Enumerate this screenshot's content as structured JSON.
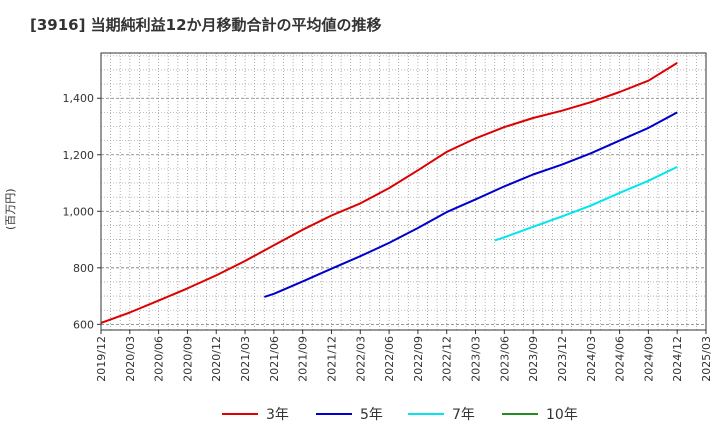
{
  "chart_data": {
    "type": "line",
    "title": "[3916]  当期純利益12か月移動合計の平均値の推移",
    "ylabel": "(百万円)",
    "xlabel": "",
    "ylim": [
      580,
      1560
    ],
    "yticks": [
      600,
      800,
      1000,
      1200,
      1400
    ],
    "ytick_labels": [
      "600",
      "800",
      "1,000",
      "1,200",
      "1,400"
    ],
    "xticks": [
      "2019/12",
      "2020/03",
      "2020/06",
      "2020/09",
      "2020/12",
      "2021/03",
      "2021/06",
      "2021/09",
      "2021/12",
      "2022/03",
      "2022/06",
      "2022/09",
      "2022/12",
      "2023/03",
      "2023/06",
      "2023/09",
      "2023/12",
      "2024/03",
      "2024/06",
      "2024/09",
      "2024/12",
      "2025/03"
    ],
    "grid": true,
    "legend_position": "bottom",
    "series": [
      {
        "name": "3年",
        "color": "#dd0000",
        "x": [
          "2019/12",
          "2020/03",
          "2020/06",
          "2020/09",
          "2020/12",
          "2021/03",
          "2021/06",
          "2021/09",
          "2021/12",
          "2022/03",
          "2022/06",
          "2022/09",
          "2022/12",
          "2023/03",
          "2023/06",
          "2023/09",
          "2023/12",
          "2024/03",
          "2024/06",
          "2024/09",
          "2024/12"
        ],
        "values": [
          605,
          642,
          684,
          727,
          773,
          824,
          880,
          935,
          985,
          1028,
          1082,
          1145,
          1210,
          1258,
          1298,
          1330,
          1356,
          1386,
          1422,
          1462,
          1525
        ]
      },
      {
        "name": "5年",
        "color": "#0000cc",
        "x": [
          "2021/05",
          "2021/06",
          "2021/09",
          "2021/12",
          "2022/03",
          "2022/06",
          "2022/09",
          "2022/12",
          "2023/03",
          "2023/06",
          "2023/09",
          "2023/12",
          "2024/03",
          "2024/06",
          "2024/09",
          "2024/12"
        ],
        "values": [
          697,
          708,
          752,
          797,
          841,
          888,
          941,
          997,
          1042,
          1088,
          1130,
          1165,
          1205,
          1250,
          1295,
          1350
        ]
      },
      {
        "name": "7年",
        "color": "#00e5ee",
        "x": [
          "2023/05",
          "2023/06",
          "2023/09",
          "2023/12",
          "2024/03",
          "2024/06",
          "2024/09",
          "2024/12"
        ],
        "values": [
          897,
          908,
          945,
          982,
          1020,
          1065,
          1108,
          1157
        ]
      },
      {
        "name": "10年",
        "color": "#228b22",
        "x": [],
        "values": []
      }
    ]
  }
}
